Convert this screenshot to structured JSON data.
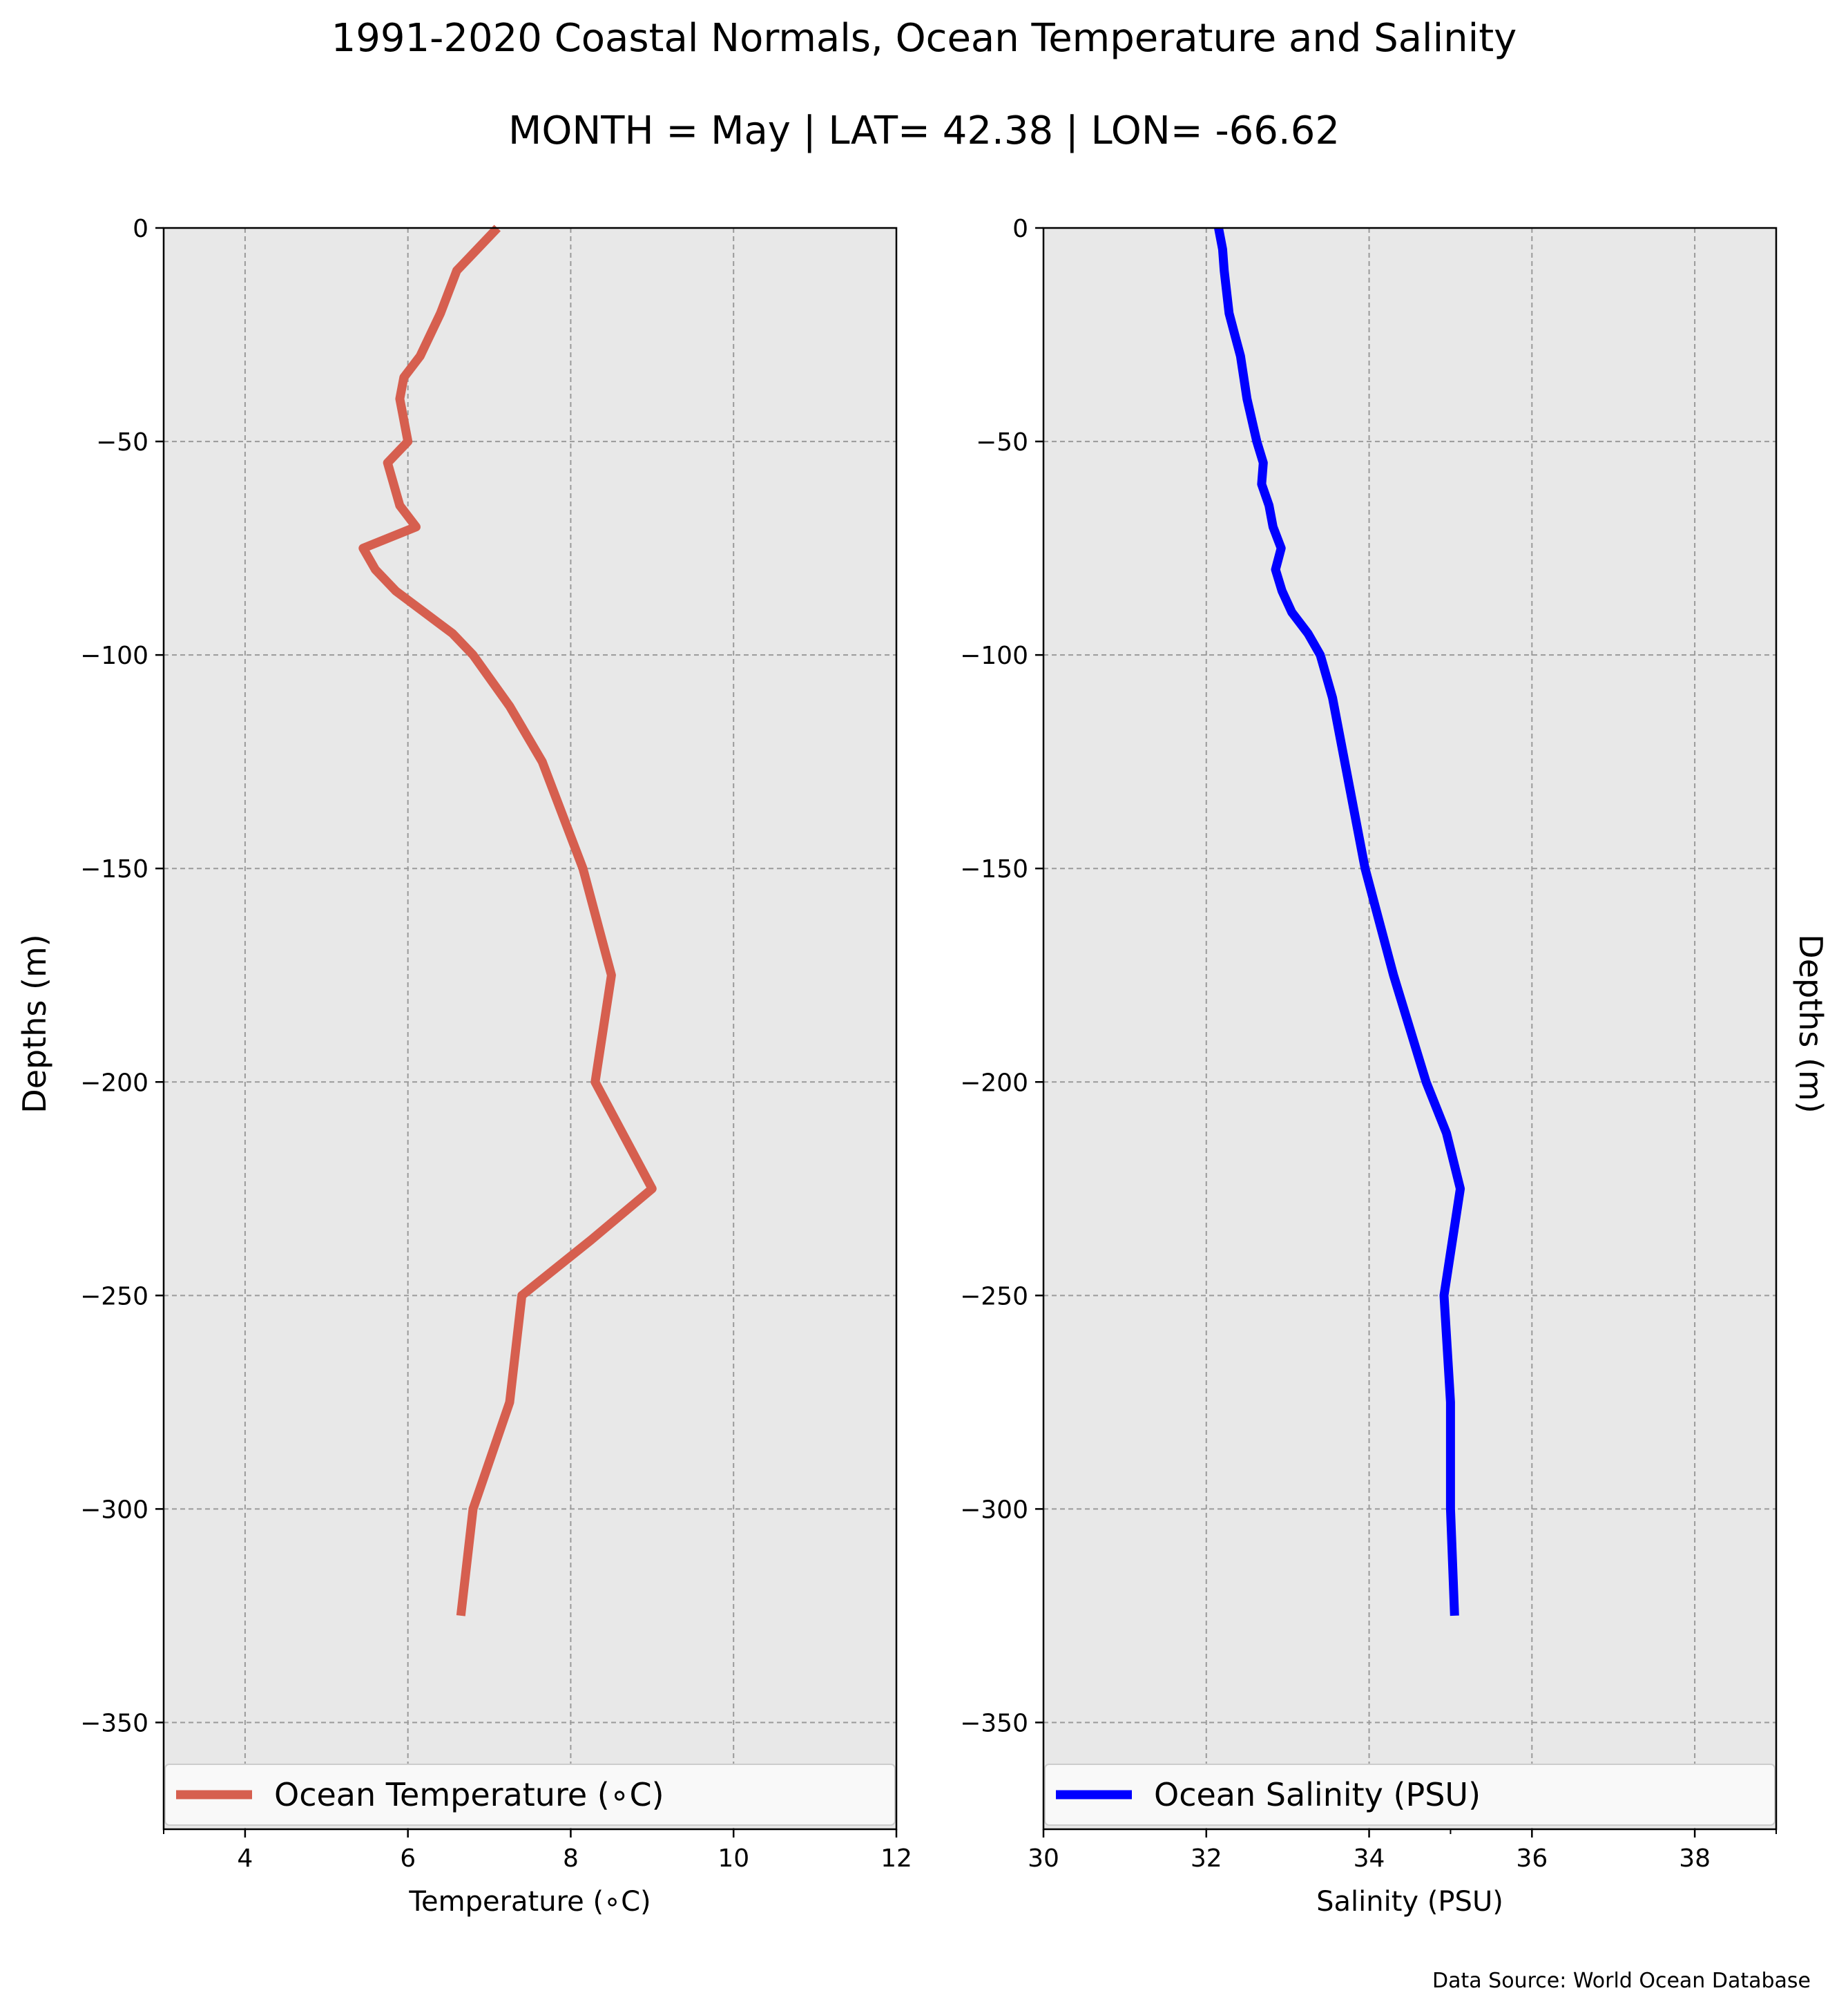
{
  "figure": {
    "title": "1991-2020 Coastal Normals, Ocean Temperature and Salinity",
    "subtitle": "MONTH = May | LAT= 42.38 | LON= -66.62",
    "source": "Data Source: World Ocean Database"
  },
  "chart_data": [
    {
      "type": "line",
      "xlabel": "Temperature (∘C)",
      "ylabel": "Depths (m)",
      "xlim": [
        3,
        12
      ],
      "ylim": [
        -375,
        0
      ],
      "xticks": [
        4,
        6,
        8,
        10,
        12
      ],
      "yticks": [
        0,
        -50,
        -100,
        -150,
        -200,
        -250,
        -300,
        -350
      ],
      "xtick_labels": [
        "4",
        "6",
        "8",
        "10",
        "12"
      ],
      "ytick_labels": [
        "0",
        "−50",
        "−100",
        "−150",
        "−200",
        "−250",
        "−300",
        "−350"
      ],
      "grid": true,
      "legend_position": "bottom",
      "series": [
        {
          "name": "Ocean Temperature (∘C)",
          "color": "#d65f4f",
          "x": [
            7.1,
            6.85,
            6.6,
            6.4,
            6.15,
            5.95,
            5.9,
            6.0,
            5.75,
            5.9,
            6.1,
            5.45,
            5.6,
            5.85,
            6.55,
            6.8,
            7.25,
            7.65,
            8.15,
            8.5,
            8.3,
            9.0,
            8.25,
            7.4,
            7.25,
            6.8,
            6.65
          ],
          "y": [
            0,
            -5,
            -10,
            -20,
            -30,
            -35,
            -40,
            -50,
            -55,
            -65,
            -70,
            -75,
            -80,
            -85,
            -95,
            -100,
            -112,
            -125,
            -150,
            -175,
            -200,
            -225,
            -237,
            -250,
            -275,
            -300,
            -325
          ]
        }
      ]
    },
    {
      "type": "line",
      "xlabel": "Salinity (PSU)",
      "ylabel": "Depths (m)",
      "xlim": [
        30,
        39
      ],
      "ylim": [
        -375,
        0
      ],
      "xticks": [
        30,
        32,
        34,
        36,
        38
      ],
      "yticks": [
        0,
        -50,
        -100,
        -150,
        -200,
        -250,
        -300,
        -350
      ],
      "xtick_labels": [
        "30",
        "32",
        "34",
        "36",
        "38"
      ],
      "ytick_labels": [
        "0",
        "−50",
        "−100",
        "−150",
        "−200",
        "−250",
        "−300",
        "−350"
      ],
      "grid": true,
      "legend_position": "bottom",
      "series": [
        {
          "name": "Ocean Salinity (PSU)",
          "color": "#0000ff",
          "x": [
            32.15,
            32.2,
            32.22,
            32.28,
            32.35,
            32.42,
            32.5,
            32.62,
            32.7,
            32.68,
            32.77,
            32.82,
            32.92,
            32.85,
            32.93,
            33.05,
            33.25,
            33.4,
            33.55,
            33.7,
            33.95,
            34.3,
            34.7,
            34.95,
            35.12,
            34.92,
            35.0,
            35.0,
            35.05
          ],
          "y": [
            0,
            -5,
            -10,
            -20,
            -25,
            -30,
            -40,
            -50,
            -55,
            -60,
            -65,
            -70,
            -75,
            -80,
            -85,
            -90,
            -95,
            -100,
            -110,
            -125,
            -150,
            -175,
            -200,
            -212,
            -225,
            -250,
            -275,
            -300,
            -325
          ]
        }
      ]
    }
  ]
}
